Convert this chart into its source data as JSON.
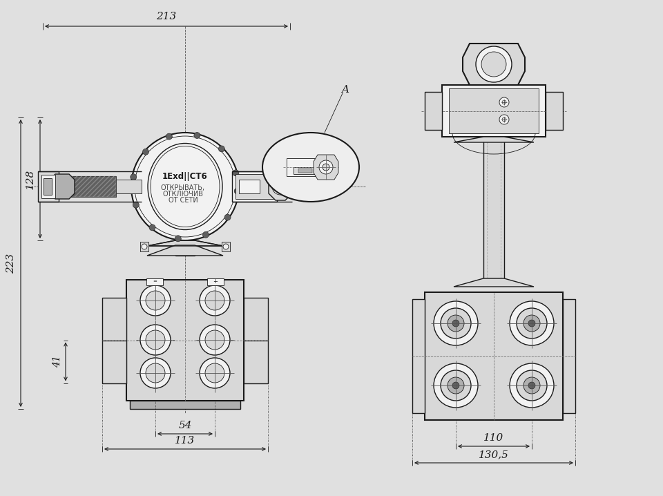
{
  "bg_color": "#e0e0e0",
  "line_color": "#1a1a1a",
  "text_1Exd": "1Exd||СТ6",
  "text_open1": "ОТКРЫВАТЬ,",
  "text_open2": "ОТКЛЮЧИВ",
  "text_open3": "ОТ СЕТИ",
  "dim_213": "213",
  "dim_128": "128",
  "dim_223": "223",
  "dim_41": "41",
  "dim_54": "54",
  "dim_113": "113",
  "dim_110": "110",
  "dim_1305": "130,5",
  "label_A": "A",
  "lw_thin": 0.6,
  "lw_med": 1.0,
  "lw_thick": 1.5,
  "fc_light": "#f2f2f2",
  "fc_mid": "#d8d8d8",
  "fc_dark": "#b0b0b0",
  "fc_darkest": "#606060"
}
